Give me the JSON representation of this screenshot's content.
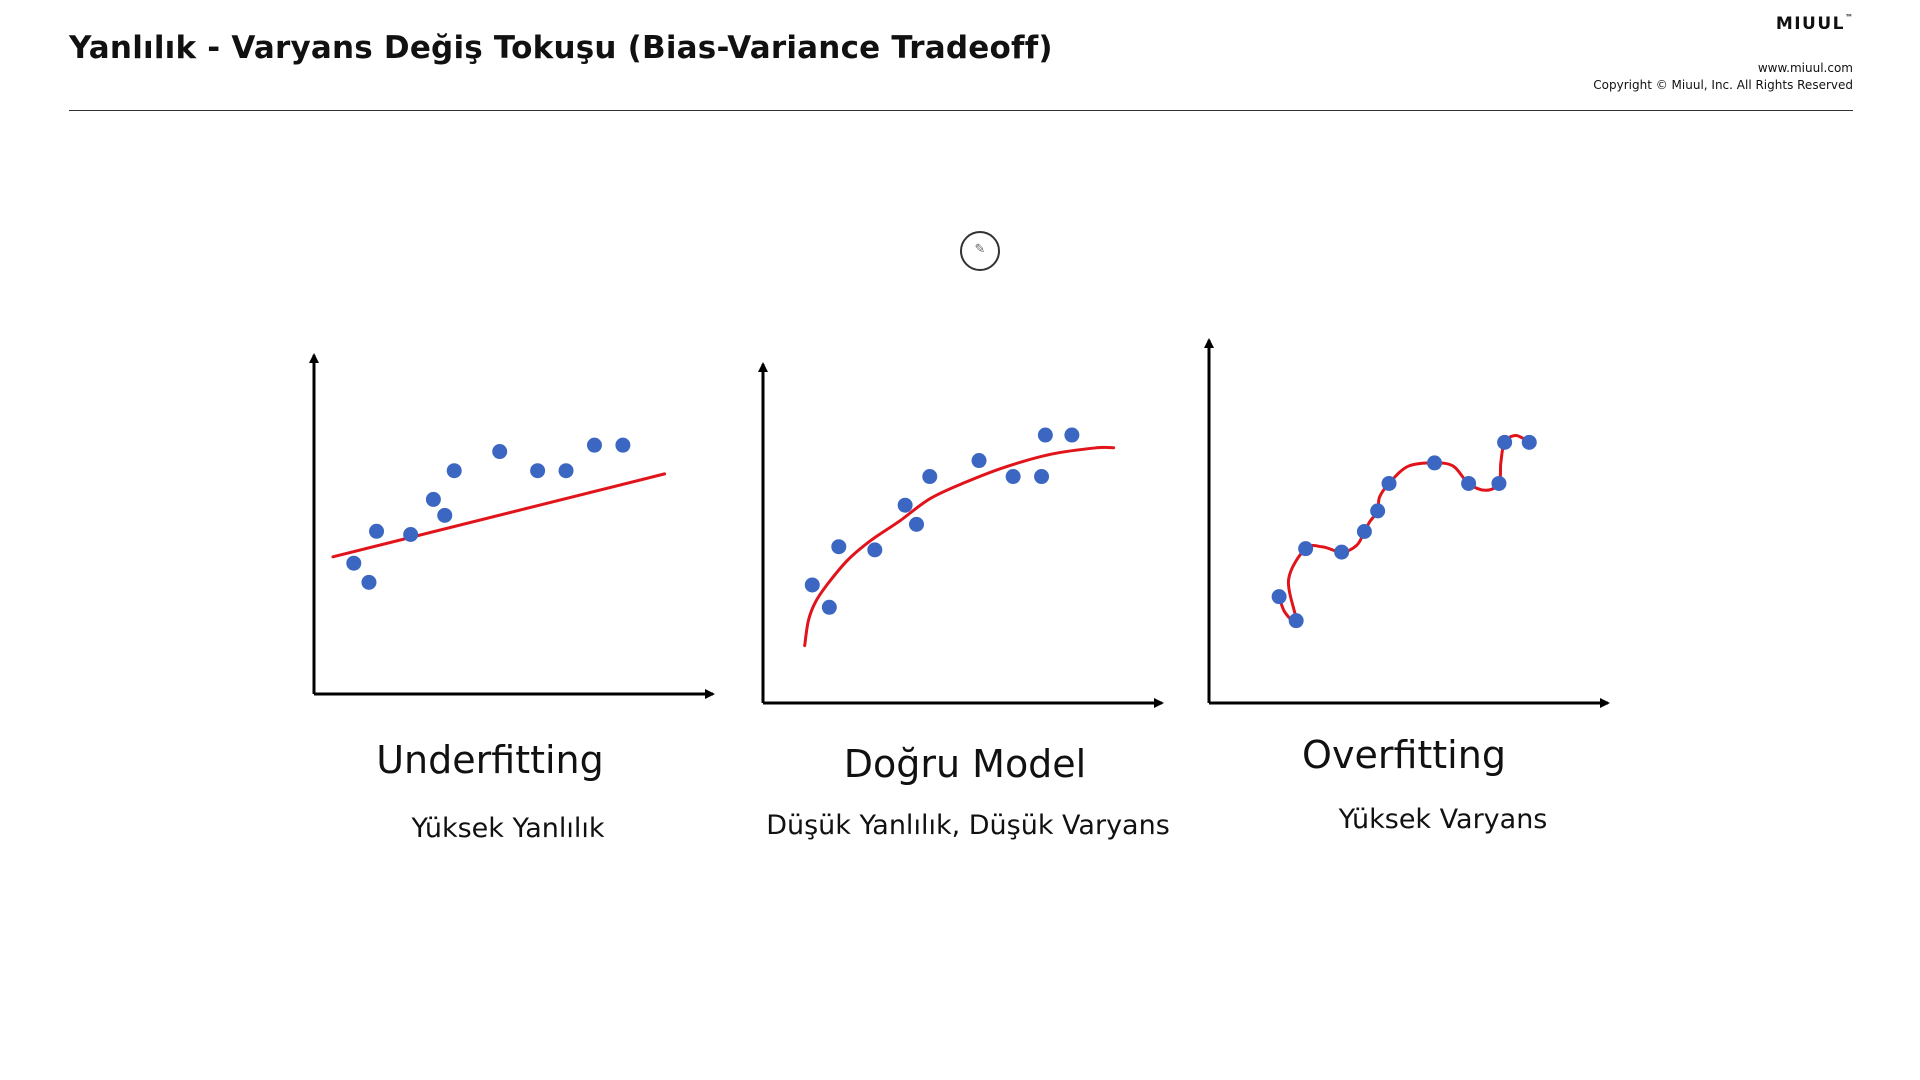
{
  "header": {
    "title": "Yanlılık - Varyans Değiş Tokuşu (Bias-Variance Tradeoff)",
    "brand": "MIUUL",
    "trademark": "™",
    "url": "www.miuul.com",
    "copyright": "Copyright © Miuul, Inc. All Rights Reserved"
  },
  "cursor": {
    "icon": "pencil-cursor-icon",
    "glyph": "✎"
  },
  "colors": {
    "points": "#3b67c2",
    "fit_curve": "#e0141a",
    "axes": "#000000"
  },
  "panels": [
    {
      "id": "underfitting",
      "title": "Underfitting",
      "subtitle": "Yüksek Yanlılık",
      "fit": "linear",
      "points": [
        [
          2.1,
          4.1
        ],
        [
          2.9,
          3.5
        ],
        [
          3.3,
          5.1
        ],
        [
          5.1,
          5.0
        ],
        [
          6.3,
          6.1
        ],
        [
          6.9,
          5.6
        ],
        [
          7.4,
          7.0
        ],
        [
          9.8,
          7.6
        ],
        [
          11.8,
          7.0
        ],
        [
          13.3,
          7.0
        ],
        [
          14.8,
          7.8
        ],
        [
          16.3,
          7.8
        ]
      ],
      "line": [
        [
          1.0,
          4.3
        ],
        [
          18.5,
          6.9
        ]
      ]
    },
    {
      "id": "dogru-model",
      "title": "Doğru Model",
      "subtitle": "Düşük Yanlılık, Düşük Varyans",
      "fit": "logarithmic",
      "points": [
        [
          2.6,
          3.7
        ],
        [
          3.5,
          3.0
        ],
        [
          4.0,
          4.9
        ],
        [
          5.9,
          4.8
        ],
        [
          7.5,
          6.2
        ],
        [
          8.1,
          5.6
        ],
        [
          8.8,
          7.1
        ],
        [
          11.4,
          7.6
        ],
        [
          13.2,
          7.1
        ],
        [
          14.7,
          7.1
        ],
        [
          14.9,
          8.4
        ],
        [
          16.3,
          8.4
        ]
      ],
      "curve": [
        [
          2.2,
          1.8
        ],
        [
          2.4,
          2.6
        ],
        [
          2.8,
          3.2
        ],
        [
          3.5,
          3.8
        ],
        [
          4.5,
          4.5
        ],
        [
          5.7,
          5.1
        ],
        [
          7.2,
          5.7
        ],
        [
          8.8,
          6.4
        ],
        [
          10.6,
          6.9
        ],
        [
          12.8,
          7.4
        ],
        [
          15.2,
          7.8
        ],
        [
          17.6,
          8.0
        ],
        [
          18.5,
          8.0
        ]
      ]
    },
    {
      "id": "overfitting",
      "title": "Overfitting",
      "subtitle": "Yüksek Varyans",
      "fit": "interpolating",
      "points": [
        [
          3.7,
          3.1
        ],
        [
          4.6,
          2.4
        ],
        [
          5.1,
          4.5
        ],
        [
          7.0,
          4.4
        ],
        [
          8.2,
          5.0
        ],
        [
          8.9,
          5.6
        ],
        [
          9.5,
          6.4
        ],
        [
          11.9,
          7.0
        ],
        [
          13.7,
          6.4
        ],
        [
          15.3,
          6.4
        ],
        [
          15.6,
          7.6
        ],
        [
          16.9,
          7.6
        ]
      ],
      "curve": [
        [
          3.7,
          3.1
        ],
        [
          4.0,
          2.65
        ],
        [
          4.6,
          2.4
        ],
        [
          4.2,
          3.6
        ],
        [
          5.1,
          4.5
        ],
        [
          6.0,
          4.55
        ],
        [
          7.0,
          4.4
        ],
        [
          7.8,
          4.6
        ],
        [
          8.2,
          5.0
        ],
        [
          8.5,
          5.3
        ],
        [
          8.9,
          5.6
        ],
        [
          9.0,
          6.0
        ],
        [
          9.5,
          6.4
        ],
        [
          10.5,
          6.9
        ],
        [
          11.9,
          7.0
        ],
        [
          12.9,
          6.9
        ],
        [
          13.7,
          6.4
        ],
        [
          14.6,
          6.2
        ],
        [
          15.3,
          6.4
        ],
        [
          15.4,
          7.0
        ],
        [
          15.6,
          7.6
        ],
        [
          16.2,
          7.8
        ],
        [
          16.9,
          7.6
        ]
      ]
    }
  ]
}
